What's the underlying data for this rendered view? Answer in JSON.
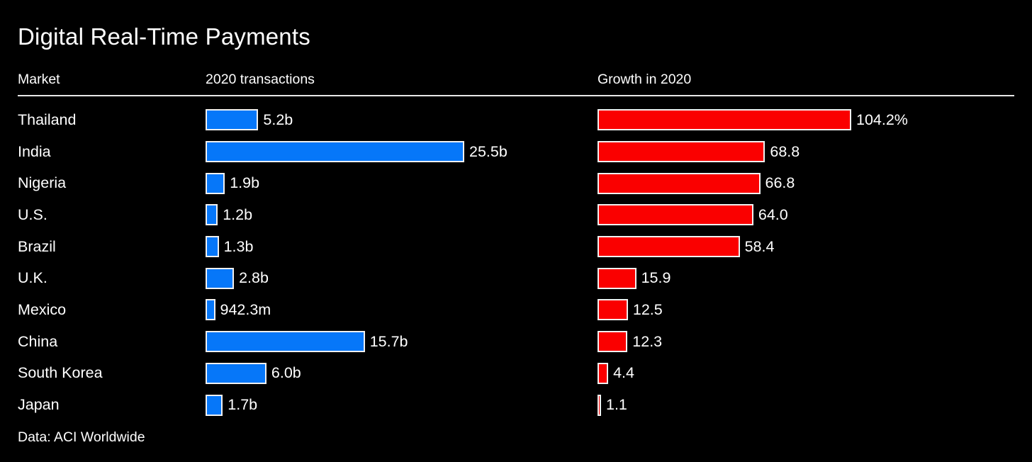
{
  "title": "Digital Real-Time Payments",
  "columns": {
    "market": "Market",
    "transactions": "2020 transactions",
    "growth": "Growth in 2020"
  },
  "footer": "Data: ACI Worldwide",
  "colors": {
    "background": "#000000",
    "text": "#ffffff",
    "transactions_bar": "#0677f9",
    "growth_bar": "#fa0000",
    "bar_border": "#f0f0f0",
    "rule": "#e8e8e8"
  },
  "chart_data": {
    "type": "bar",
    "orientation": "horizontal",
    "title": "Digital Real-Time Payments",
    "categories": [
      "Thailand",
      "India",
      "Nigeria",
      "U.S.",
      "Brazil",
      "U.K.",
      "Mexico",
      "China",
      "South Korea",
      "Japan"
    ],
    "series": [
      {
        "name": "2020 transactions",
        "unit": "billions",
        "values": [
          5.2,
          25.5,
          1.9,
          1.2,
          1.3,
          2.8,
          0.9423,
          15.7,
          6.0,
          1.7
        ],
        "labels": [
          "5.2b",
          "25.5b",
          "1.9b",
          "1.2b",
          "1.3b",
          "2.8b",
          "942.3m",
          "15.7b",
          "6.0b",
          "1.7b"
        ],
        "xmax": 25.5,
        "color": "#0677f9"
      },
      {
        "name": "Growth in 2020",
        "unit": "percent",
        "values": [
          104.2,
          68.8,
          66.8,
          64.0,
          58.4,
          15.9,
          12.5,
          12.3,
          4.4,
          1.1
        ],
        "labels": [
          "104.2%",
          "68.8",
          "66.8",
          "64.0",
          "58.4",
          "15.9",
          "12.5",
          "12.3",
          "4.4",
          "1.1"
        ],
        "xmax": 104.2,
        "color": "#fa0000"
      }
    ],
    "legend_position": "column-headers",
    "grid": false,
    "source": "Data: ACI Worldwide"
  }
}
